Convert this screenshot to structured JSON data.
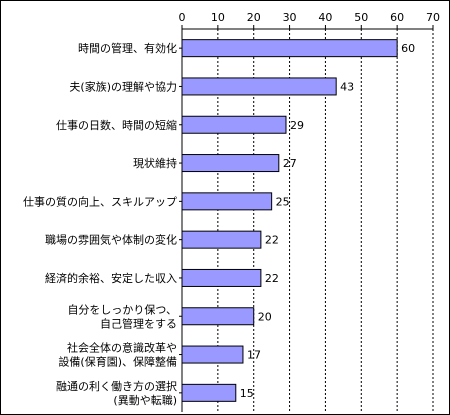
{
  "chart_data": {
    "type": "bar",
    "orientation": "horizontal",
    "xlim": [
      0,
      70
    ],
    "ticks": [
      0,
      10,
      20,
      30,
      40,
      50,
      60,
      70
    ],
    "grid": true,
    "bar_color": "#9999ff",
    "categories": [
      [
        "時間の管理、有効化"
      ],
      [
        "夫(家族)の理解や協力"
      ],
      [
        "仕事の日数、時間の短縮"
      ],
      [
        "現状維持"
      ],
      [
        "仕事の質の向上、スキルアップ"
      ],
      [
        "職場の雰囲気や体制の変化"
      ],
      [
        "経済的余裕、安定した収入"
      ],
      [
        "自分をしっかり保つ、",
        "自己管理をする"
      ],
      [
        "社会全体の意識改革や",
        "設備(保育園)、保障整備"
      ],
      [
        "融通の利く働き方の選択",
        "(異動や転職)"
      ]
    ],
    "values": [
      60,
      43,
      29,
      27,
      25,
      22,
      22,
      20,
      17,
      15
    ]
  }
}
